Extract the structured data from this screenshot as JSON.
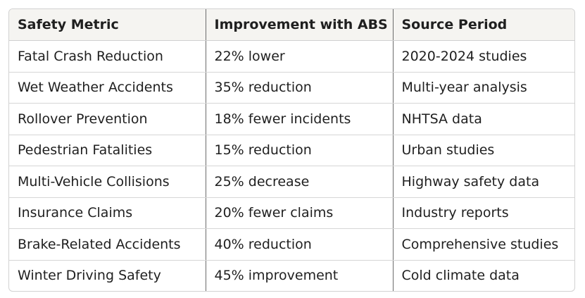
{
  "table": {
    "headers": [
      "Safety Metric",
      "Improvement with ABS",
      "Source Period"
    ],
    "rows": [
      [
        "Fatal Crash Reduction",
        "22% lower",
        "2020-2024 studies"
      ],
      [
        "Wet Weather Accidents",
        "35% reduction",
        "Multi-year analysis"
      ],
      [
        "Rollover Prevention",
        "18% fewer incidents",
        "NHTSA data"
      ],
      [
        "Pedestrian Fatalities",
        "15% reduction",
        "Urban studies"
      ],
      [
        "Multi-Vehicle Collisions",
        "25% decrease",
        "Highway safety data"
      ],
      [
        "Insurance Claims",
        "20% fewer claims",
        "Industry reports"
      ],
      [
        "Brake-Related Accidents",
        "40% reduction",
        "Comprehensive studies"
      ],
      [
        "Winter Driving Safety",
        "45% improvement",
        "Cold climate data"
      ]
    ]
  }
}
